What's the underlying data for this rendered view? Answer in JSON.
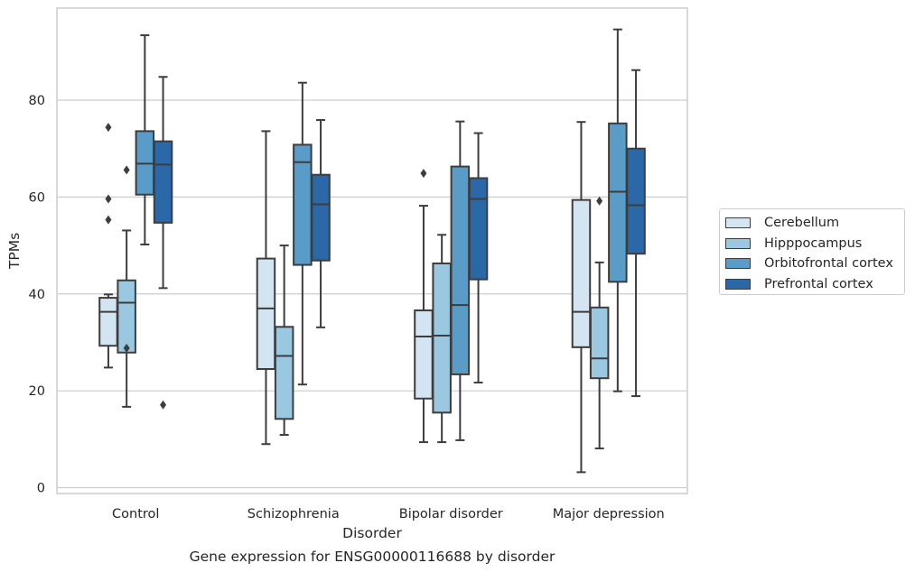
{
  "chart_data": {
    "type": "boxplot",
    "title": "Gene expression for ENSG00000116688 by disorder",
    "xlabel": "Disorder",
    "ylabel": "TPMs",
    "ylim": [
      -1.2,
      99
    ],
    "yticks": [
      0,
      20,
      40,
      60,
      80
    ],
    "grid": "horizontal",
    "legend_position": "right",
    "categories": [
      "Control",
      "Schizophrenia",
      "Bipolar disorder",
      "Major depression"
    ],
    "series": [
      {
        "name": "Cerebellum",
        "color": "#d3e4f3",
        "boxes": [
          {
            "whisker_low": 24.8,
            "q1": 29.3,
            "median": 36.3,
            "q3": 39.2,
            "whisker_high": 39.9,
            "outliers": [
              74.4,
              59.6,
              55.3
            ]
          },
          {
            "whisker_low": 9.0,
            "q1": 24.5,
            "median": 37.0,
            "q3": 47.3,
            "whisker_high": 73.6,
            "outliers": []
          },
          {
            "whisker_low": 9.4,
            "q1": 18.4,
            "median": 31.2,
            "q3": 36.6,
            "whisker_high": 58.2,
            "outliers": [
              64.9
            ]
          },
          {
            "whisker_low": 3.2,
            "q1": 29.0,
            "median": 36.3,
            "q3": 59.4,
            "whisker_high": 75.5,
            "outliers": []
          }
        ]
      },
      {
        "name": "Hipppocampus",
        "color": "#9ac8e0",
        "boxes": [
          {
            "whisker_low": 16.7,
            "q1": 27.9,
            "median": 38.2,
            "q3": 42.8,
            "whisker_high": 53.1,
            "outliers": [
              65.6,
              28.8
            ]
          },
          {
            "whisker_low": 10.9,
            "q1": 14.2,
            "median": 27.2,
            "q3": 33.2,
            "whisker_high": 50.0,
            "outliers": []
          },
          {
            "whisker_low": 9.4,
            "q1": 15.5,
            "median": 31.4,
            "q3": 46.3,
            "whisker_high": 52.2,
            "outliers": []
          },
          {
            "whisker_low": 8.1,
            "q1": 22.6,
            "median": 26.7,
            "q3": 37.2,
            "whisker_high": 46.5,
            "outliers": [
              59.2
            ]
          }
        ]
      },
      {
        "name": "Orbitofrontal cortex",
        "color": "#5a9cc8",
        "boxes": [
          {
            "whisker_low": 50.2,
            "q1": 60.5,
            "median": 66.9,
            "q3": 73.6,
            "whisker_high": 93.4,
            "outliers": []
          },
          {
            "whisker_low": 21.3,
            "q1": 46.0,
            "median": 67.2,
            "q3": 70.8,
            "whisker_high": 83.6,
            "outliers": []
          },
          {
            "whisker_low": 9.8,
            "q1": 23.4,
            "median": 37.7,
            "q3": 66.3,
            "whisker_high": 75.6,
            "outliers": []
          },
          {
            "whisker_low": 19.9,
            "q1": 42.5,
            "median": 61.1,
            "q3": 75.2,
            "whisker_high": 94.6,
            "outliers": []
          }
        ]
      },
      {
        "name": "Prefrontal cortex",
        "color": "#2a68a8",
        "boxes": [
          {
            "whisker_low": 41.2,
            "q1": 54.7,
            "median": 66.7,
            "q3": 71.5,
            "whisker_high": 84.8,
            "outliers": [
              17.1
            ]
          },
          {
            "whisker_low": 33.1,
            "q1": 46.9,
            "median": 58.5,
            "q3": 64.6,
            "whisker_high": 75.9,
            "outliers": []
          },
          {
            "whisker_low": 21.7,
            "q1": 43.0,
            "median": 59.6,
            "q3": 63.9,
            "whisker_high": 73.2,
            "outliers": []
          },
          {
            "whisker_low": 18.9,
            "q1": 48.3,
            "median": 58.3,
            "q3": 70.0,
            "whisker_high": 86.2,
            "outliers": []
          }
        ]
      }
    ]
  }
}
